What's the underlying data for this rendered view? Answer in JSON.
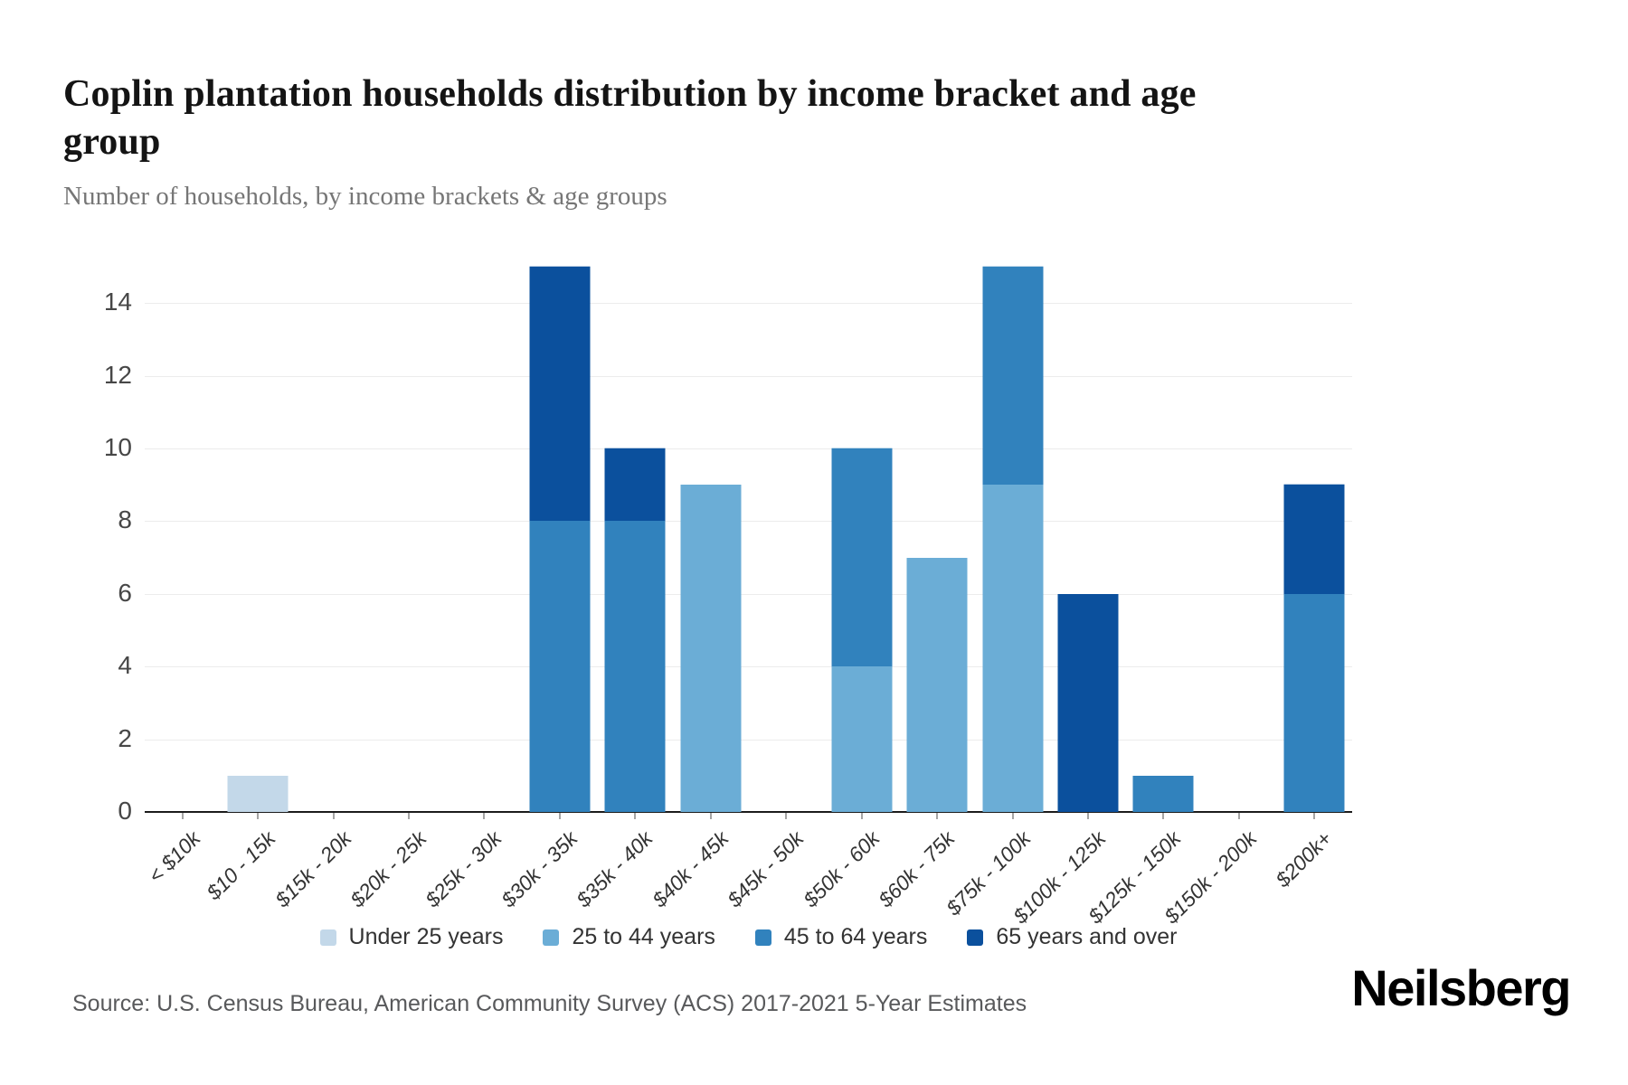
{
  "header": {
    "title": "Coplin plantation households distribution by income bracket and age group",
    "subtitle": "Number of households, by income brackets & age groups"
  },
  "chart_data": {
    "type": "bar",
    "stacked": true,
    "title": "Coplin plantation households distribution by income bracket and age group",
    "subtitle": "Number of households, by income brackets & age groups",
    "categories": [
      "< $10k",
      "$10 - 15k",
      "$15k - 20k",
      "$20k - 25k",
      "$25k - 30k",
      "$30k - 35k",
      "$35k - 40k",
      "$40k - 45k",
      "$45k - 50k",
      "$50k - 60k",
      "$60k - 75k",
      "$75k - 100k",
      "$100k - 125k",
      "$125k - 150k",
      "$150k - 200k",
      "$200k+"
    ],
    "series": [
      {
        "name": "Under 25 years",
        "color": "#c3d8e9",
        "values": [
          0,
          1,
          0,
          0,
          0,
          0,
          0,
          0,
          0,
          0,
          0,
          0,
          0,
          0,
          0,
          0
        ]
      },
      {
        "name": "25 to 44 years",
        "color": "#6badd6",
        "values": [
          0,
          0,
          0,
          0,
          0,
          0,
          0,
          9,
          0,
          4,
          7,
          9,
          0,
          0,
          0,
          0
        ]
      },
      {
        "name": "45 to 64 years",
        "color": "#3182bd",
        "values": [
          0,
          0,
          0,
          0,
          0,
          8,
          8,
          0,
          0,
          6,
          0,
          6,
          0,
          1,
          0,
          6
        ]
      },
      {
        "name": "65 years and over",
        "color": "#0b509d",
        "values": [
          0,
          0,
          0,
          0,
          0,
          7,
          2,
          0,
          0,
          0,
          0,
          0,
          6,
          0,
          0,
          3
        ]
      }
    ],
    "totals": [
      0,
      1,
      0,
      0,
      0,
      15,
      10,
      9,
      0,
      10,
      7,
      15,
      6,
      1,
      0,
      9
    ],
    "xlabel": "",
    "ylabel": "",
    "ylim": [
      0,
      15
    ],
    "yticks": [
      0,
      2,
      4,
      6,
      8,
      10,
      12,
      14
    ],
    "grid": true,
    "legend_position": "bottom"
  },
  "footer": {
    "source": "Source: U.S. Census Bureau, American Community Survey (ACS) 2017-2021 5-Year Estimates",
    "brand": "Neilsberg"
  }
}
